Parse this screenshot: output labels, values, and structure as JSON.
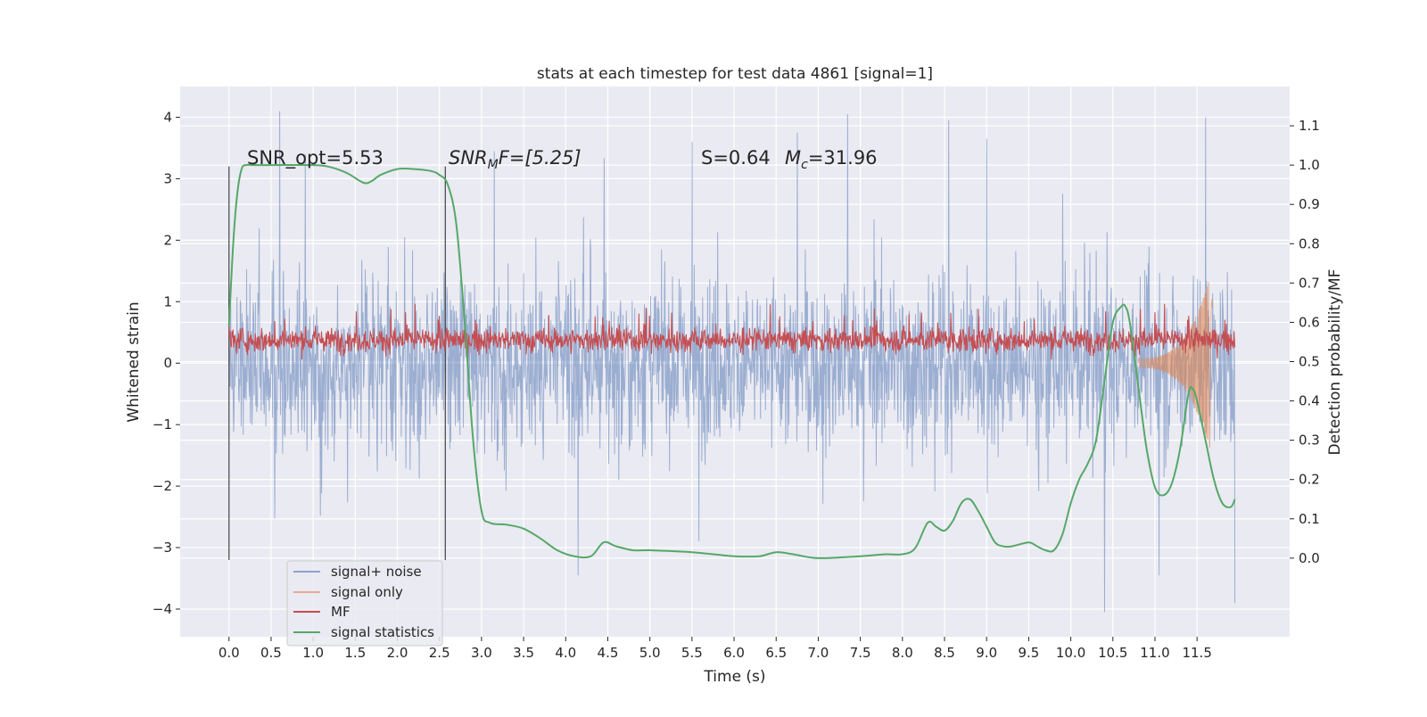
{
  "chart_data": {
    "type": "line",
    "title": "stats at each timestep for test data 4861 [signal=1]",
    "xlabel": "Time (s)",
    "ylabel": "Whitened strain",
    "ylabel_right": "Detection probability/MF",
    "xlim": [
      -0.58,
      12.6
    ],
    "ylim": [
      -4.45,
      4.5
    ],
    "ylim_right": [
      -0.2,
      1.2
    ],
    "x_ticks": [
      "0.0",
      "0.5",
      "1.0",
      "1.5",
      "2.0",
      "2.5",
      "3.0",
      "3.5",
      "4.0",
      "4.5",
      "5.0",
      "5.5",
      "6.0",
      "6.5",
      "7.0",
      "7.5",
      "8.0",
      "8.5",
      "9.0",
      "9.5",
      "10.0",
      "10.5",
      "11.0",
      "11.5"
    ],
    "x_tick_values": [
      0,
      0.5,
      1,
      1.5,
      2,
      2.5,
      3,
      3.5,
      4,
      4.5,
      5,
      5.5,
      6,
      6.5,
      7,
      7.5,
      8,
      8.5,
      9,
      9.5,
      10,
      10.5,
      11,
      11.5
    ],
    "y_ticks": [
      "−4",
      "−3",
      "−2",
      "−1",
      "0",
      "1",
      "2",
      "3",
      "4"
    ],
    "y_tick_values": [
      -4,
      -3,
      -2,
      -1,
      0,
      1,
      2,
      3,
      4
    ],
    "y_right_ticks": [
      "0.0",
      "0.1",
      "0.2",
      "0.3",
      "0.4",
      "0.5",
      "0.6",
      "0.7",
      "0.8",
      "0.9",
      "1.0",
      "1.1"
    ],
    "y_right_tick_values": [
      0,
      0.1,
      0.2,
      0.3,
      0.4,
      0.5,
      0.6,
      0.7,
      0.8,
      0.9,
      1.0,
      1.1
    ],
    "grid": true,
    "legend_position": "lower-left",
    "annotations": {
      "snr_opt": "SNR_opt=5.53",
      "snr_mf": "SNR",
      "snr_mf_sub": "M",
      "snr_mf_rest": "F=[5.25]",
      "s_val": "S=0.64",
      "mc_label": "M",
      "mc_sub": "c",
      "mc_rest": "=31.96"
    },
    "vertical_markers": [
      0.0,
      2.57
    ],
    "series": [
      {
        "name": "signal+ noise",
        "color": "#4c72b0",
        "x_range": [
          0,
          11.95
        ],
        "typical_envelope": [
          -1.9,
          1.9
        ],
        "extremes": [
          {
            "x": 0.6,
            "y": 4.1
          },
          {
            "x": 3.15,
            "y": 3.45
          },
          {
            "x": 5.5,
            "y": 3.6
          },
          {
            "x": 6.75,
            "y": 3.75
          },
          {
            "x": 7.35,
            "y": 4.05
          },
          {
            "x": 8.55,
            "y": 3.95
          },
          {
            "x": 9.0,
            "y": 3.65
          },
          {
            "x": 11.6,
            "y": 4.0
          },
          {
            "x": 4.15,
            "y": -3.45
          },
          {
            "x": 10.4,
            "y": -4.05
          },
          {
            "x": 11.05,
            "y": -3.45
          },
          {
            "x": 11.95,
            "y": -3.9
          }
        ]
      },
      {
        "name": "signal only",
        "color": "#dd8452",
        "x_range": [
          10.8,
          11.68
        ],
        "envelope_peak": 1.45
      },
      {
        "name": "MF",
        "color": "#c44e52",
        "x_range": [
          0,
          11.95
        ],
        "typical_range_right": [
          0.5,
          0.62
        ]
      },
      {
        "name": "signal statistics",
        "color": "#55a868",
        "x": [
          0.0,
          0.05,
          0.1,
          0.15,
          0.2,
          0.3,
          0.5,
          1.0,
          1.2,
          1.4,
          1.6,
          1.7,
          1.8,
          2.0,
          2.2,
          2.4,
          2.5,
          2.6,
          2.7,
          2.8,
          2.9,
          3.0,
          3.1,
          3.3,
          3.5,
          3.7,
          3.9,
          4.1,
          4.3,
          4.45,
          4.6,
          4.8,
          5.0,
          5.5,
          6.0,
          6.3,
          6.5,
          6.7,
          7.0,
          7.5,
          7.8,
          8.0,
          8.15,
          8.3,
          8.4,
          8.5,
          8.6,
          8.7,
          8.8,
          8.9,
          9.0,
          9.1,
          9.2,
          9.3,
          9.5,
          9.6,
          9.7,
          9.8,
          9.9,
          10.0,
          10.1,
          10.2,
          10.3,
          10.4,
          10.5,
          10.6,
          10.65,
          10.7,
          10.8,
          10.9,
          11.0,
          11.1,
          11.2,
          11.3,
          11.4,
          11.45,
          11.5,
          11.6,
          11.7,
          11.8,
          11.9,
          11.95
        ],
        "y": [
          0.59,
          0.8,
          0.93,
          0.99,
          1.0,
          1.0,
          1.0,
          1.0,
          0.995,
          0.98,
          0.955,
          0.96,
          0.975,
          0.99,
          0.99,
          0.985,
          0.975,
          0.95,
          0.85,
          0.6,
          0.3,
          0.12,
          0.09,
          0.085,
          0.075,
          0.05,
          0.02,
          0.005,
          0.005,
          0.04,
          0.03,
          0.02,
          0.02,
          0.015,
          0.005,
          0.005,
          0.015,
          0.01,
          0.0,
          0.005,
          0.01,
          0.01,
          0.025,
          0.09,
          0.08,
          0.07,
          0.095,
          0.14,
          0.15,
          0.12,
          0.08,
          0.04,
          0.03,
          0.03,
          0.04,
          0.03,
          0.02,
          0.02,
          0.06,
          0.14,
          0.2,
          0.24,
          0.3,
          0.45,
          0.6,
          0.64,
          0.64,
          0.6,
          0.44,
          0.28,
          0.18,
          0.16,
          0.19,
          0.28,
          0.42,
          0.43,
          0.4,
          0.3,
          0.2,
          0.14,
          0.13,
          0.15
        ]
      }
    ]
  }
}
